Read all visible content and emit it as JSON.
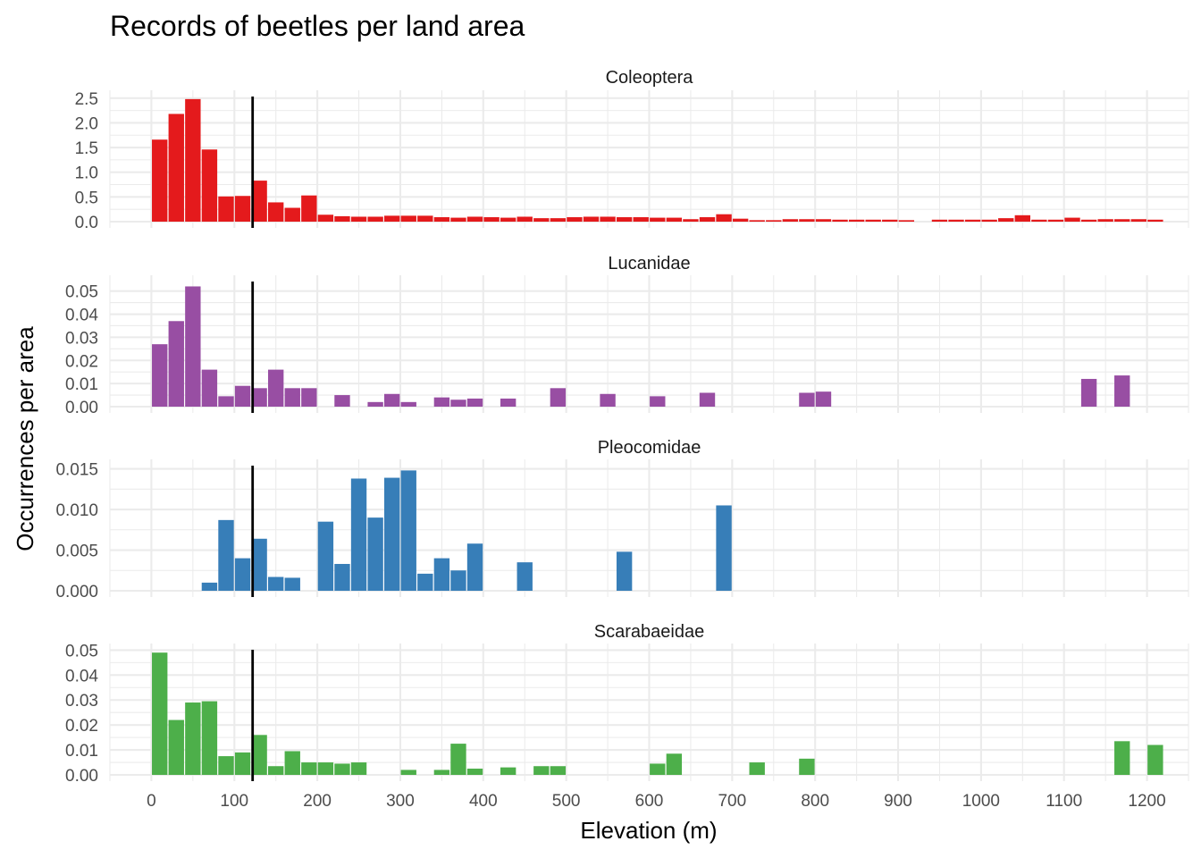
{
  "chart_data": {
    "type": "bar",
    "title": "Records of beetles per land area",
    "xlabel": "Elevation (m)",
    "ylabel": "Occurrences per area",
    "xlim": [
      -50,
      1250
    ],
    "x_ticks": [
      0,
      100,
      200,
      300,
      400,
      500,
      600,
      700,
      800,
      900,
      1000,
      1100,
      1200
    ],
    "x_tick_labels": [
      "0",
      "100",
      "200",
      "300",
      "400",
      "500",
      "600",
      "700",
      "800",
      "900",
      "1000",
      "1100",
      "1200"
    ],
    "bin_width": 20,
    "reference_line_x": 122,
    "grid": true,
    "legend": "none",
    "panels": [
      {
        "name": "Coleoptera",
        "color": "#e41a1c",
        "ylim": [
          0,
          2.55
        ],
        "y_ticks": [
          0,
          0.5,
          1.0,
          1.5,
          2.0,
          2.5
        ],
        "y_tick_labels": [
          "0.0",
          "0.5",
          "1.0",
          "1.5",
          "2.0",
          "2.5"
        ],
        "x": [
          10,
          30,
          50,
          70,
          90,
          110,
          130,
          150,
          170,
          190,
          210,
          230,
          250,
          270,
          290,
          310,
          330,
          350,
          370,
          390,
          410,
          430,
          450,
          470,
          490,
          510,
          530,
          550,
          570,
          590,
          610,
          630,
          650,
          670,
          690,
          710,
          730,
          750,
          770,
          790,
          810,
          830,
          850,
          870,
          890,
          910,
          950,
          970,
          990,
          1010,
          1030,
          1050,
          1070,
          1090,
          1110,
          1130,
          1150,
          1170,
          1190,
          1210
        ],
        "values": [
          1.66,
          2.18,
          2.48,
          1.46,
          0.51,
          0.52,
          0.83,
          0.39,
          0.28,
          0.53,
          0.14,
          0.11,
          0.1,
          0.1,
          0.12,
          0.12,
          0.12,
          0.09,
          0.08,
          0.1,
          0.09,
          0.08,
          0.1,
          0.07,
          0.07,
          0.09,
          0.1,
          0.1,
          0.09,
          0.09,
          0.08,
          0.08,
          0.05,
          0.09,
          0.15,
          0.06,
          0.03,
          0.03,
          0.05,
          0.05,
          0.05,
          0.04,
          0.04,
          0.04,
          0.04,
          0.03,
          0.04,
          0.04,
          0.04,
          0.04,
          0.07,
          0.13,
          0.04,
          0.04,
          0.08,
          0.04,
          0.05,
          0.05,
          0.05,
          0.04
        ]
      },
      {
        "name": "Lucanidae",
        "color": "#984ea3",
        "ylim": [
          0,
          0.0545
        ],
        "y_ticks": [
          0,
          0.01,
          0.02,
          0.03,
          0.04,
          0.05
        ],
        "y_tick_labels": [
          "0.00",
          "0.01",
          "0.02",
          "0.03",
          "0.04",
          "0.05"
        ],
        "x": [
          10,
          30,
          50,
          70,
          90,
          110,
          130,
          150,
          170,
          190,
          230,
          270,
          290,
          310,
          350,
          370,
          390,
          430,
          490,
          550,
          610,
          670,
          790,
          810,
          1130,
          1170
        ],
        "values": [
          0.027,
          0.037,
          0.052,
          0.016,
          0.0045,
          0.009,
          0.008,
          0.016,
          0.008,
          0.008,
          0.005,
          0.002,
          0.0055,
          0.002,
          0.004,
          0.003,
          0.0035,
          0.0035,
          0.008,
          0.0055,
          0.0045,
          0.006,
          0.006,
          0.0065,
          0.012,
          0.0135
        ]
      },
      {
        "name": "Pleocomidae",
        "color": "#377eb8",
        "ylim": [
          0,
          0.0155
        ],
        "y_ticks": [
          0,
          0.005,
          0.01,
          0.015
        ],
        "y_tick_labels": [
          "0.000",
          "0.005",
          "0.010",
          "0.015"
        ],
        "x": [
          70,
          90,
          110,
          130,
          150,
          170,
          210,
          230,
          250,
          270,
          290,
          310,
          330,
          350,
          370,
          390,
          450,
          570,
          690
        ],
        "values": [
          0.001,
          0.0087,
          0.004,
          0.0064,
          0.0017,
          0.0016,
          0.0085,
          0.0033,
          0.0138,
          0.009,
          0.0139,
          0.0148,
          0.0021,
          0.004,
          0.0025,
          0.0058,
          0.0035,
          0.0048,
          0.0105
        ]
      },
      {
        "name": "Scarabaeidae",
        "color": "#4daf4a",
        "ylim": [
          0,
          0.0505
        ],
        "y_ticks": [
          0,
          0.01,
          0.02,
          0.03,
          0.04,
          0.05
        ],
        "y_tick_labels": [
          "0.00",
          "0.01",
          "0.02",
          "0.03",
          "0.04",
          "0.05"
        ],
        "x": [
          10,
          30,
          50,
          70,
          90,
          110,
          130,
          150,
          170,
          190,
          210,
          230,
          250,
          310,
          350,
          370,
          390,
          430,
          470,
          490,
          610,
          630,
          730,
          790,
          1170,
          1210
        ],
        "values": [
          0.049,
          0.022,
          0.029,
          0.0295,
          0.0075,
          0.009,
          0.016,
          0.0035,
          0.0095,
          0.005,
          0.005,
          0.0045,
          0.005,
          0.002,
          0.002,
          0.0125,
          0.0025,
          0.003,
          0.0035,
          0.0035,
          0.0045,
          0.0085,
          0.005,
          0.0065,
          0.0135,
          0.012
        ]
      }
    ]
  }
}
